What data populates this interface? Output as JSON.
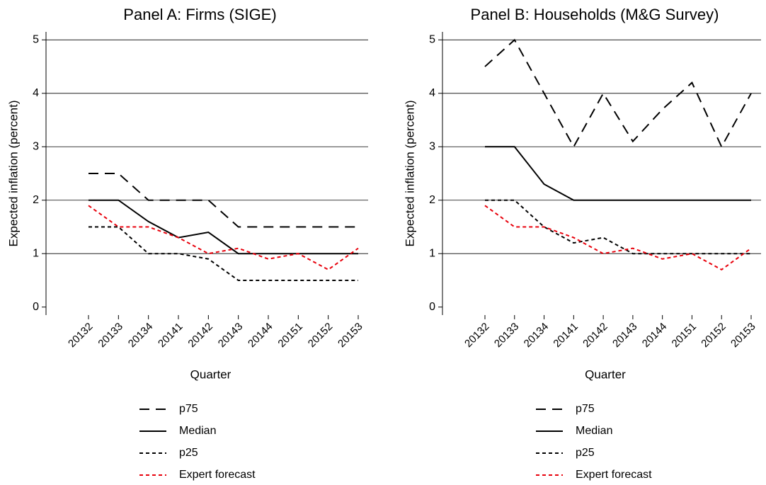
{
  "chart_data": [
    {
      "type": "line",
      "title": "Panel A: Firms (SIGE)",
      "y_label": "Expected inflation (percent)",
      "x_label": "Quarter",
      "categories": [
        "20132",
        "20133",
        "20134",
        "20141",
        "20142",
        "20143",
        "20144",
        "20151",
        "20152",
        "20153"
      ],
      "ylim": [
        -0.15,
        5.15
      ],
      "yticks": [
        0,
        1,
        2,
        3,
        4,
        5
      ],
      "grid": true,
      "series": [
        {
          "name": "p75",
          "color": "#000000",
          "dash": "long",
          "values": [
            2.5,
            2.5,
            2,
            2,
            2,
            1.5,
            1.5,
            1.5,
            1.5,
            1.5
          ]
        },
        {
          "name": "Median",
          "color": "#000000",
          "dash": "solid",
          "values": [
            2,
            2,
            1.6,
            1.3,
            1.4,
            1,
            1,
            1,
            1,
            1
          ]
        },
        {
          "name": "p25",
          "color": "#000000",
          "dash": "short",
          "values": [
            1.5,
            1.5,
            1,
            1,
            0.9,
            0.5,
            0.5,
            0.5,
            0.5,
            0.5
          ]
        },
        {
          "name": "Expert forecast",
          "color": "#e8000b",
          "dash": "short",
          "values": [
            1.9,
            1.5,
            1.5,
            1.3,
            1,
            1.1,
            0.9,
            1,
            0.7,
            1.1
          ]
        }
      ]
    },
    {
      "type": "line",
      "title": "Panel B: Households (M&G Survey)",
      "y_label": "Expected inflation (percent)",
      "x_label": "Quarter",
      "categories": [
        "20132",
        "20133",
        "20134",
        "20141",
        "20142",
        "20143",
        "20144",
        "20151",
        "20152",
        "20153"
      ],
      "ylim": [
        -0.15,
        5.15
      ],
      "yticks": [
        0,
        1,
        2,
        3,
        4,
        5
      ],
      "grid": true,
      "series": [
        {
          "name": "p75",
          "color": "#000000",
          "dash": "long",
          "values": [
            4.5,
            5,
            4,
            3,
            4,
            3.1,
            3.7,
            4.2,
            3,
            4
          ]
        },
        {
          "name": "Median",
          "color": "#000000",
          "dash": "solid",
          "values": [
            3,
            3,
            2.3,
            2,
            2,
            2,
            2,
            2,
            2,
            2
          ]
        },
        {
          "name": "p25",
          "color": "#000000",
          "dash": "short",
          "values": [
            2,
            2,
            1.5,
            1.2,
            1.3,
            1,
            1,
            1,
            1,
            1
          ]
        },
        {
          "name": "Expert forecast",
          "color": "#e8000b",
          "dash": "short",
          "values": [
            1.9,
            1.5,
            1.5,
            1.3,
            1,
            1.1,
            0.9,
            1,
            0.7,
            1.1
          ]
        }
      ]
    }
  ]
}
